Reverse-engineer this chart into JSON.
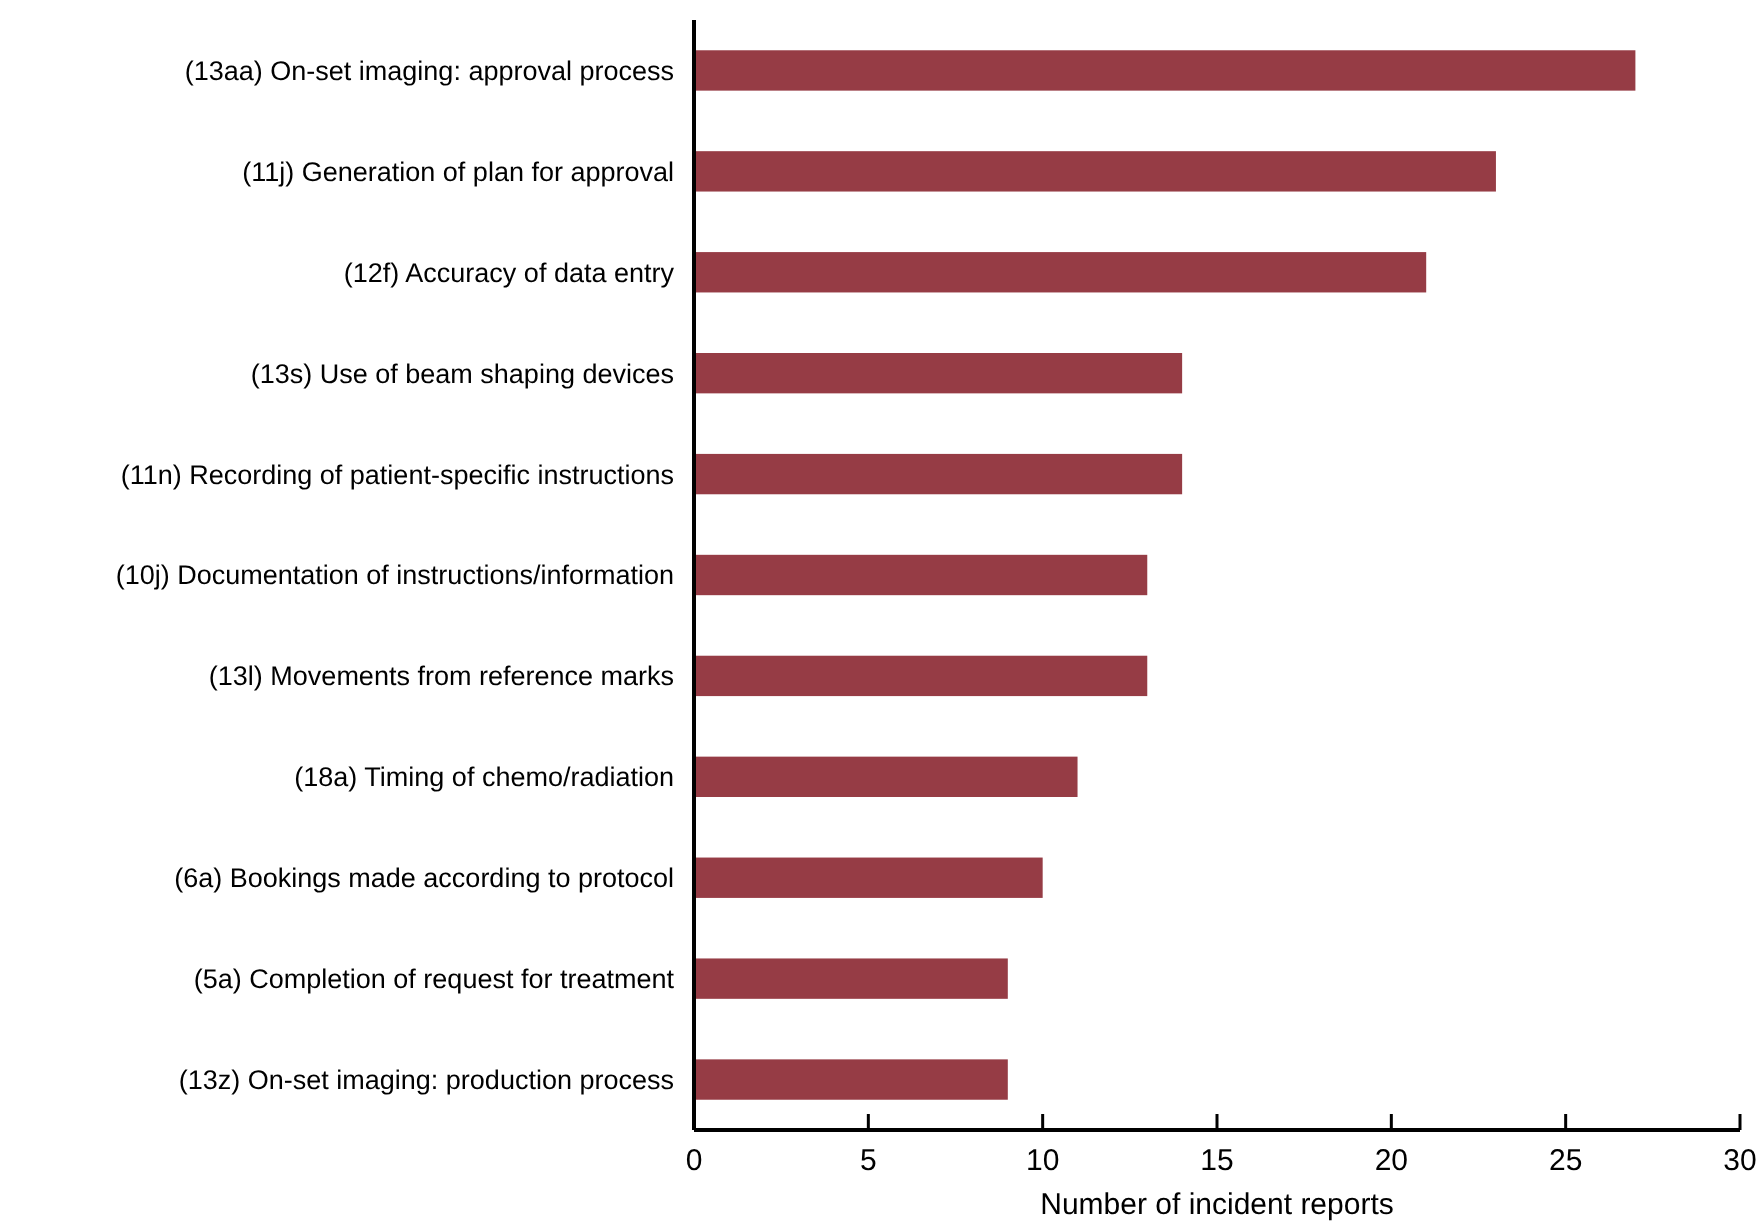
{
  "chart_data": {
    "type": "bar",
    "orientation": "horizontal",
    "xlabel": "Number of incident reports",
    "categories": [
      "(13aa) On-set imaging: approval process",
      "(11j) Generation of plan for approval",
      "(12f) Accuracy of data entry",
      "(13s) Use of beam shaping devices",
      "(11n) Recording of patient-specific instructions",
      "(10j) Documentation of instructions/information",
      "(13l) Movements from reference marks",
      "(18a) Timing of chemo/radiation",
      "(6a) Bookings made according to protocol",
      "(5a) Completion of request for treatment",
      "(13z) On-set imaging: production process"
    ],
    "values": [
      27,
      23,
      21,
      14,
      14,
      13,
      13,
      11,
      10,
      9,
      9
    ],
    "color": "#963c45",
    "xlim": [
      0,
      30
    ],
    "xticks": [
      0,
      5,
      10,
      15,
      20,
      25,
      30
    ],
    "grid": false
  }
}
